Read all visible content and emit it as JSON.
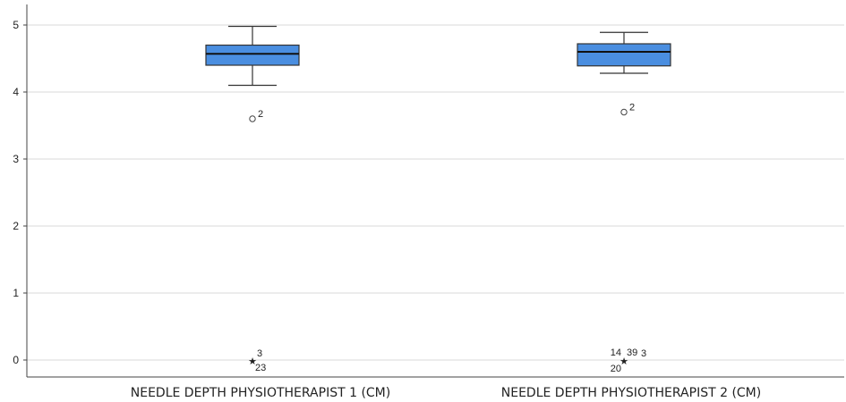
{
  "chart_data": {
    "type": "boxplot",
    "title": "",
    "xlabel": "",
    "ylabel": "",
    "ylim": [
      -0.3,
      5.2
    ],
    "yticks": [
      0,
      1,
      2,
      3,
      4,
      5
    ],
    "grid": true,
    "legend": "none",
    "colors": {
      "box_fill": "#4a8ee0",
      "box_stroke": "#333333",
      "grid": "#d9d9d9",
      "axis": "#444444"
    },
    "categories": [
      "NEEDLE DEPTH PHYSIOTHERAPIST 1 (CM)",
      "NEEDLE DEPTH PHYSIOTHERAPIST 2 (CM)"
    ],
    "boxes": [
      {
        "category": "NEEDLE DEPTH PHYSIOTHERAPIST 1 (CM)",
        "whisker_low": 4.1,
        "q1": 4.4,
        "median": 4.57,
        "q3": 4.7,
        "whisker_high": 4.98,
        "outliers": [
          {
            "value": 3.6,
            "marker": "circle",
            "labels": [
              "2"
            ]
          }
        ],
        "extremes": [
          {
            "value": 0,
            "marker": "star",
            "labels": [
              "3",
              "23"
            ]
          }
        ]
      },
      {
        "category": "NEEDLE DEPTH PHYSIOTHERAPIST 2 (CM)",
        "whisker_low": 4.28,
        "q1": 4.39,
        "median": 4.6,
        "q3": 4.72,
        "whisker_high": 4.89,
        "outliers": [
          {
            "value": 3.7,
            "marker": "circle",
            "labels": [
              "2"
            ]
          }
        ],
        "extremes": [
          {
            "value": 0,
            "marker": "star",
            "labels": [
              "14",
              "39",
              "3",
              "20"
            ]
          }
        ]
      }
    ]
  }
}
